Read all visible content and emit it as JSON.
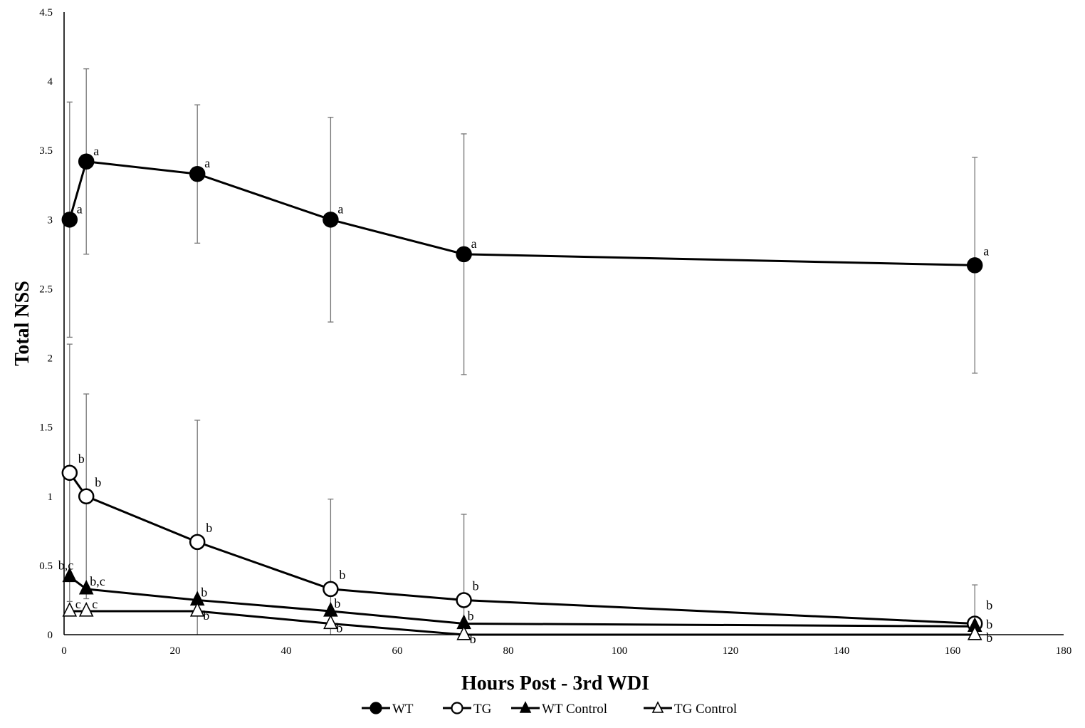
{
  "chart_data": {
    "type": "line",
    "title": "",
    "xlabel": "Hours Post - 3rd WDI",
    "ylabel": "Total NSS",
    "xlim": [
      0,
      180
    ],
    "ylim": [
      0,
      4.5
    ],
    "x_ticks": [
      "0",
      "20",
      "40",
      "60",
      "80",
      "100",
      "120",
      "140",
      "160",
      "180"
    ],
    "y_ticks": [
      "0",
      "0.5",
      "1",
      "1.5",
      "2",
      "2.5",
      "3",
      "3.5",
      "4",
      "4.5"
    ],
    "grid": false,
    "legend_position": "bottom",
    "series": [
      {
        "name": "WT",
        "marker": "circle-filled",
        "x": [
          1,
          4,
          24,
          48,
          72,
          164
        ],
        "y": [
          3.0,
          3.42,
          3.33,
          3.0,
          2.75,
          2.67
        ],
        "error": [
          0.85,
          0.67,
          0.5,
          0.74,
          0.87,
          0.78
        ],
        "labels": [
          "a",
          "a",
          "a",
          "a",
          "a",
          "a"
        ]
      },
      {
        "name": "TG",
        "marker": "circle-open",
        "x": [
          1,
          4,
          24,
          48,
          72,
          164
        ],
        "y": [
          1.17,
          1.0,
          0.67,
          0.33,
          0.25,
          0.08
        ],
        "error": [
          0.93,
          0.74,
          0.88,
          0.65,
          0.62,
          0.28
        ],
        "labels": [
          "b",
          "b",
          "b",
          "b",
          "b",
          "b"
        ]
      },
      {
        "name": "WT Control",
        "marker": "triangle-filled",
        "x": [
          1,
          4,
          24,
          48,
          72,
          164
        ],
        "y": [
          0.42,
          0.33,
          0.25,
          0.17,
          0.08,
          0.06
        ],
        "error": [
          0.0,
          0.0,
          0.0,
          0.0,
          0.0,
          0.0
        ],
        "labels": [
          "b,c",
          "b,c",
          "b",
          "b",
          "b",
          "b"
        ]
      },
      {
        "name": "TG Control",
        "marker": "triangle-open",
        "x": [
          1,
          4,
          24,
          48,
          72,
          164
        ],
        "y": [
          0.17,
          0.17,
          0.17,
          0.08,
          0.0,
          0.0
        ],
        "error": [
          0.0,
          0.0,
          0.0,
          0.0,
          0.0,
          0.0
        ],
        "labels": [
          "c",
          "c",
          "b",
          "b",
          "b",
          "b"
        ]
      }
    ]
  }
}
